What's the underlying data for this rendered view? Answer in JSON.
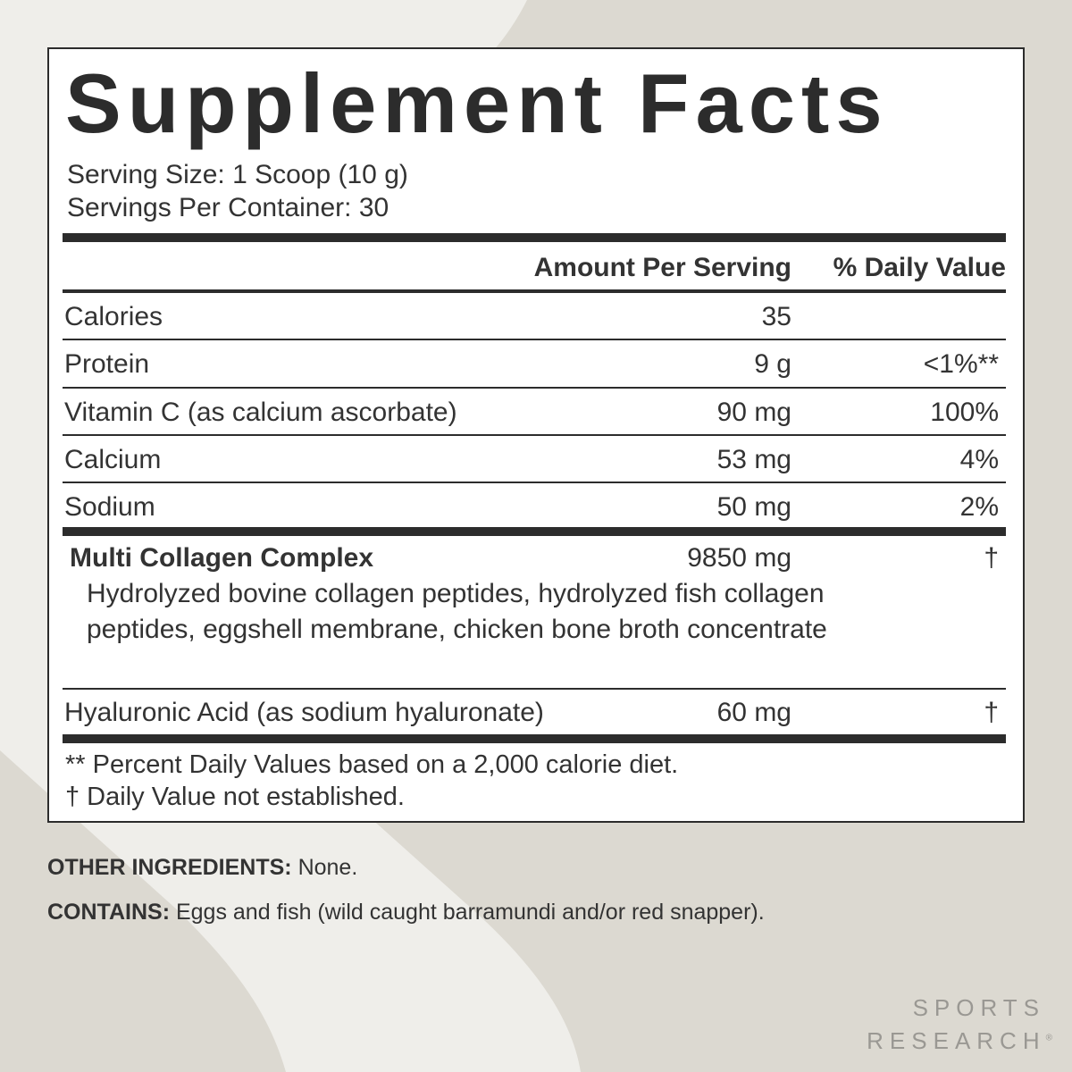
{
  "label": {
    "title": "Supplement Facts",
    "serving_size": "Serving Size: 1 Scoop (10 g)",
    "servings_per_container": "Servings Per Container: 30",
    "header_amount": "Amount Per Serving",
    "header_dv": "% Daily Value",
    "rows": [
      {
        "name": "Calories",
        "amount": "35",
        "dv": ""
      },
      {
        "name": "Protein",
        "amount": "9 g",
        "dv": "<1%**"
      },
      {
        "name": "Vitamin C (as calcium ascorbate)",
        "amount": "90 mg",
        "dv": "100%"
      },
      {
        "name": "Calcium",
        "amount": "53 mg",
        "dv": "4%"
      },
      {
        "name": "Sodium",
        "amount": "50 mg",
        "dv": "2%"
      }
    ],
    "complex": {
      "name": "Multi Collagen Complex",
      "amount": "9850 mg",
      "dv": "†",
      "ingredients": "Hydrolyzed bovine collagen peptides, hydrolyzed fish collagen peptides, eggshell membrane, chicken bone broth concentrate"
    },
    "hyaluronic": {
      "name": "Hyaluronic Acid (as sodium hyaluronate)",
      "amount": "60 mg",
      "dv": "†"
    },
    "footnote_1": "** Percent Daily Values based on a 2,000 calorie diet.",
    "footnote_2": "†  Daily Value not established."
  },
  "other_ingredients": {
    "label": "OTHER INGREDIENTS:",
    "value": " None."
  },
  "contains": {
    "label": "CONTAINS:",
    "value": " Eggs and fish (wild caught barramundi and/or red snapper)."
  },
  "brand": {
    "line1": "SPORTS",
    "line2": "RESEARCH",
    "mark": "®"
  },
  "colors": {
    "background": "#dcd9d1",
    "panel": "#ffffff",
    "text": "#2c2c2c",
    "brand": "#9a9893"
  }
}
